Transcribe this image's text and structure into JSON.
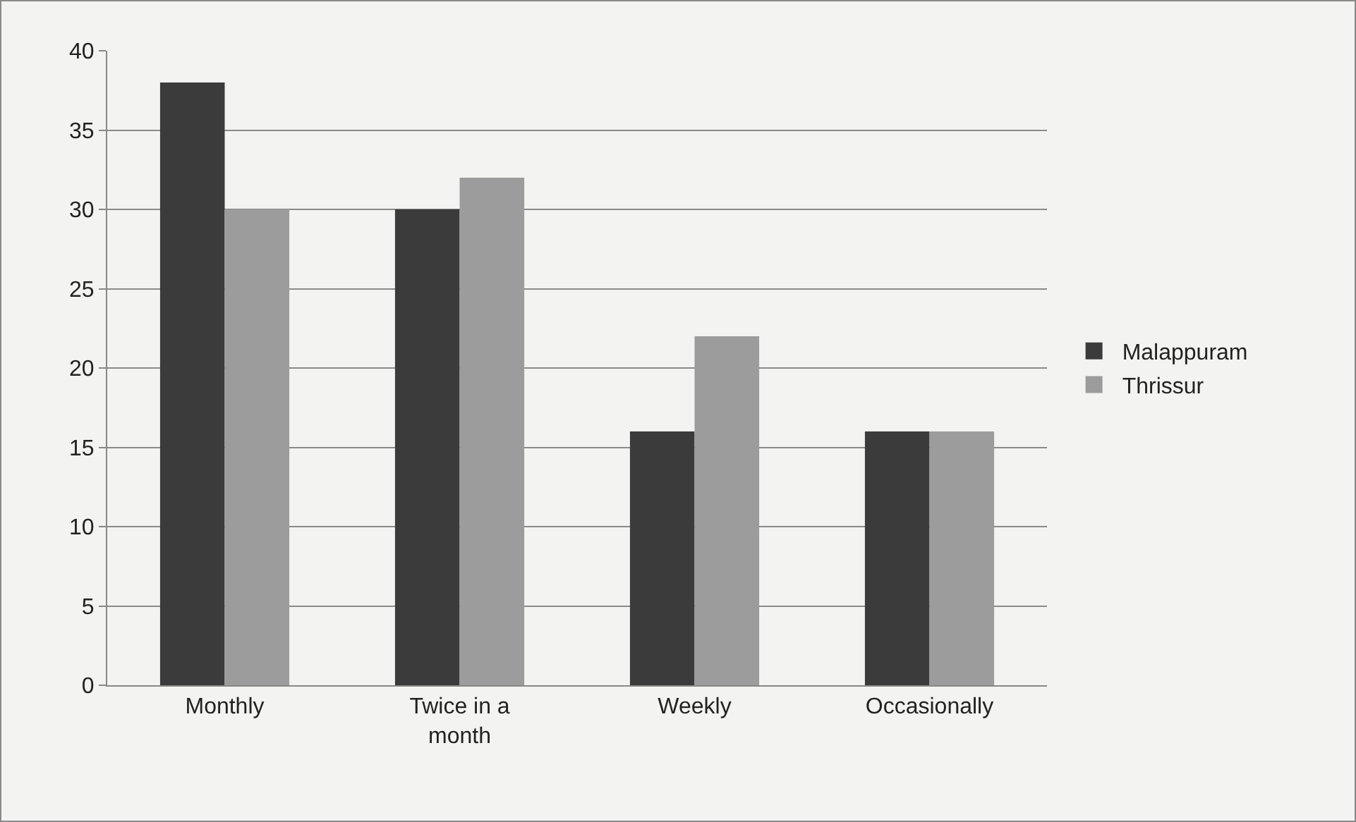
{
  "chart_data": {
    "type": "bar",
    "categories": [
      "Monthly",
      "Twice in a month",
      "Weekly",
      "Occasionally"
    ],
    "series": [
      {
        "name": "Malappuram",
        "color": "#3b3b3b",
        "values": [
          38,
          30,
          16,
          16
        ]
      },
      {
        "name": "Thrissur",
        "color": "#9c9c9c",
        "values": [
          30,
          32,
          22,
          16
        ]
      }
    ],
    "ylim": [
      0,
      40
    ],
    "yticks": [
      0,
      5,
      10,
      15,
      20,
      25,
      30,
      35,
      40
    ],
    "grid": "y",
    "legend": "right"
  }
}
